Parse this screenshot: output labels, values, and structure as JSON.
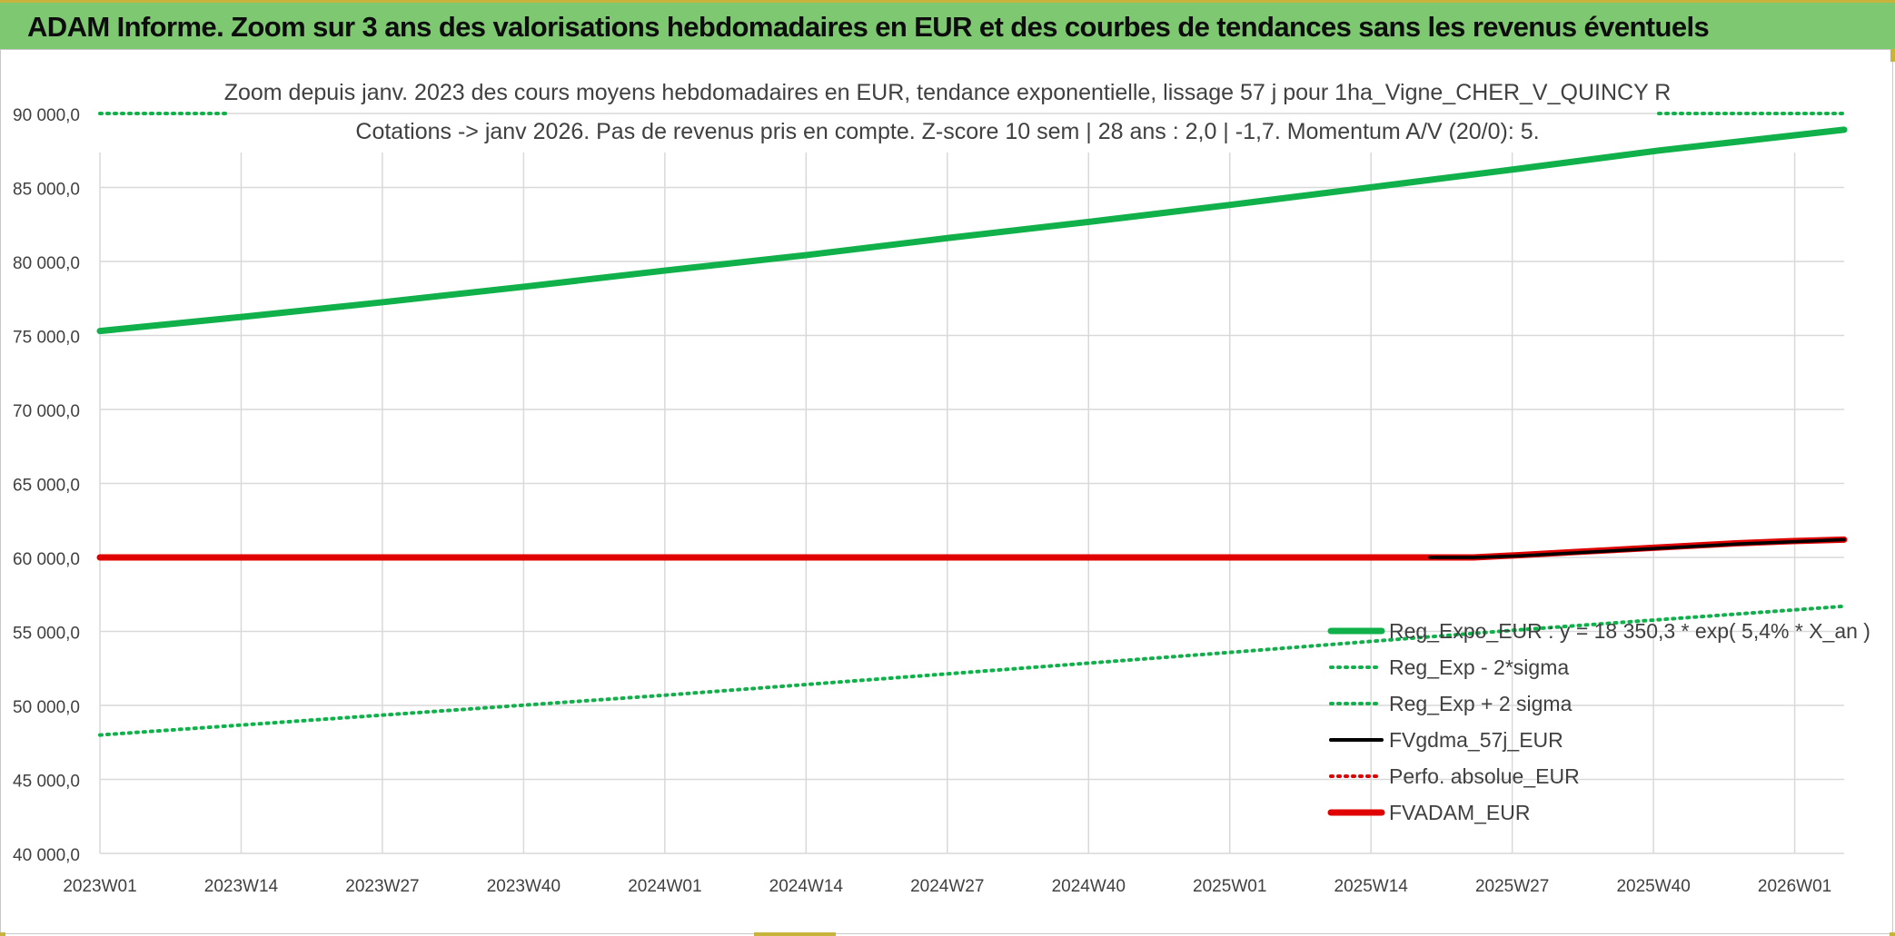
{
  "header": {
    "title": "ADAM Informe. Zoom sur 3 ans des valorisations hebdomadaires en EUR et des courbes de tendances sans les revenus éventuels"
  },
  "chart_data": {
    "type": "line",
    "title_line1": "Zoom depuis janv. 2023 des cours moyens hebdomadaires en EUR, tendance exponentielle, lissage 57 j pour 1ha_Vigne_CHER_V_QUINCY R",
    "title_line2": "Cotations -> janv 2026. Pas de revenus pris en compte. Z-score 10 sem | 28 ans : 2,0 | -1,7. Momentum A/V (20/0): 5.",
    "xlabel": "",
    "ylabel": "",
    "ylim": [
      40000,
      90000
    ],
    "y_ticks": [
      "40 000,0",
      "45 000,0",
      "50 000,0",
      "55 000,0",
      "60 000,0",
      "65 000,0",
      "70 000,0",
      "75 000,0",
      "80 000,0",
      "85 000,0",
      "90 000,0"
    ],
    "x_ticks": [
      "2023W01",
      "2023W14",
      "2023W27",
      "2023W40",
      "2024W01",
      "2024W14",
      "2024W27",
      "2024W40",
      "2025W01",
      "2025W14",
      "2025W27",
      "2025W40",
      "2026W01"
    ],
    "x_range_weeks": [
      0,
      160
    ],
    "grid": true,
    "legend_position": "bottom-right",
    "colors": {
      "reg_expo": "#10b04a",
      "fvgdma": "#000000",
      "perfo": "#e00000",
      "fvadam": "#e00000",
      "grid": "#d9d9d9",
      "axis_text": "#404040",
      "title_text": "#404040"
    },
    "series": [
      {
        "name": "Reg_Expo_EUR : y = 18 350,3 * exp( 5,4% *  X_an )",
        "style": "solid-thick",
        "color": "#10b04a",
        "points": [
          [
            0,
            75300
          ],
          [
            13,
            76250
          ],
          [
            26,
            77250
          ],
          [
            39,
            78300
          ],
          [
            52,
            79400
          ],
          [
            65,
            80450
          ],
          [
            78,
            81600
          ],
          [
            91,
            82700
          ],
          [
            104,
            83850
          ],
          [
            117,
            85050
          ],
          [
            130,
            86250
          ],
          [
            143,
            87500
          ],
          [
            160,
            88900
          ]
        ]
      },
      {
        "name": "Reg_Exp - 2*sigma",
        "style": "dotted",
        "color": "#10b04a",
        "points": [
          [
            0,
            48000
          ],
          [
            26,
            49350
          ],
          [
            52,
            50700
          ],
          [
            78,
            52150
          ],
          [
            104,
            53600
          ],
          [
            130,
            55100
          ],
          [
            160,
            56700
          ]
        ]
      },
      {
        "name": "Reg_Exp + 2 sigma",
        "style": "dotted",
        "color": "#10b04a",
        "points": [
          [
            0,
            90000
          ],
          [
            12,
            90000
          ]
        ],
        "points_right": [
          [
            143,
            90000
          ],
          [
            160,
            90000
          ]
        ]
      },
      {
        "name": "FVgdma_57j_EUR",
        "style": "solid",
        "color": "#000000",
        "points": [
          [
            122,
            60000
          ],
          [
            126,
            60000
          ],
          [
            130,
            60100
          ],
          [
            135,
            60300
          ],
          [
            140,
            60500
          ],
          [
            145,
            60700
          ],
          [
            150,
            60900
          ],
          [
            155,
            61050
          ],
          [
            160,
            61200
          ]
        ]
      },
      {
        "name": "Perfo. absolue_EUR",
        "style": "dotted",
        "color": "#e00000",
        "points": []
      },
      {
        "name": "FVADAM_EUR",
        "style": "solid-thick",
        "color": "#e00000",
        "points": [
          [
            0,
            60000
          ],
          [
            122,
            60000
          ],
          [
            126,
            60000
          ],
          [
            130,
            60150
          ],
          [
            135,
            60350
          ],
          [
            140,
            60550
          ],
          [
            145,
            60750
          ],
          [
            150,
            60950
          ],
          [
            155,
            61100
          ],
          [
            160,
            61200
          ]
        ]
      }
    ]
  }
}
